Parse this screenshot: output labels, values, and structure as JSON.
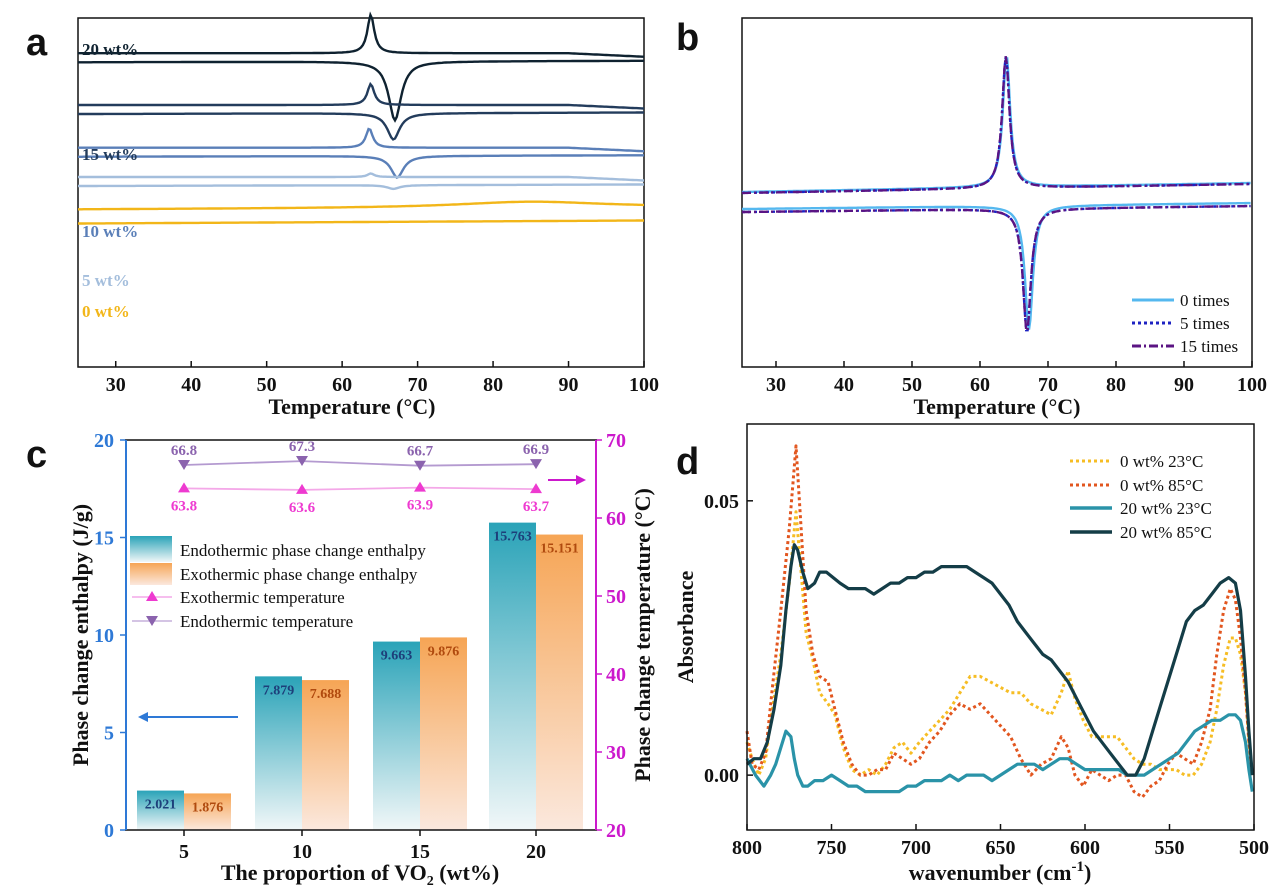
{
  "colors": {
    "wt20": "#0f2230",
    "wt15": "#233c5c",
    "wt10": "#5a7fb8",
    "wt5": "#a4bedc",
    "wt0": "#f2b619",
    "b0": "#55b8ef",
    "b5": "#1d22c2",
    "b15": "#5b1483",
    "endoBar": "#2aa3b8",
    "exoBar": "#f6a555",
    "exoT": "#ee3ad0",
    "endoT": "#8b63ae",
    "leftAxis": "#2e79d6",
    "rightAxis": "#cc19cc",
    "d0_23": "#f6bd24",
    "d0_85": "#e2561f",
    "d20_23": "#2a93a8",
    "d20_85": "#143d47",
    "endoLabel": "#1d3f7a",
    "exoLabel": "#b04a0e"
  },
  "chart_data": [
    {
      "panel": "a",
      "type": "line",
      "xlabel": "Temperature (°C)",
      "ylabel": "",
      "xlim": [
        25,
        100
      ],
      "xticks": [
        "30",
        "40",
        "50",
        "60",
        "70",
        "80",
        "90",
        "100"
      ],
      "series": [
        {
          "name": "20 wt%",
          "offset": 0.5,
          "exo_peak_x": 63.8,
          "endo_peak_x": 67.0,
          "exo_peak_h": 1.1,
          "endo_peak_h": 1.9
        },
        {
          "name": "15 wt%",
          "offset": 2.8,
          "exo_peak_x": 63.8,
          "endo_peak_x": 66.8,
          "exo_peak_h": 0.6,
          "endo_peak_h": 0.85
        },
        {
          "name": "10 wt%",
          "offset": 4.7,
          "exo_peak_x": 63.6,
          "endo_peak_x": 67.3,
          "exo_peak_h": 0.55,
          "endo_peak_h": 0.7
        },
        {
          "name": "5 wt%",
          "offset": 6.0,
          "exo_peak_x": 63.8,
          "endo_peak_x": 66.8,
          "exo_peak_h": 0.1,
          "endo_peak_h": 0.12
        },
        {
          "name": "0 wt%",
          "offset": 7.0,
          "exo_peak_x": null,
          "endo_peak_x": null,
          "exo_peak_h": 0,
          "endo_peak_h": 0
        }
      ]
    },
    {
      "panel": "b",
      "type": "line",
      "xlabel": "Temperature (°C)",
      "ylabel": "",
      "xlim": [
        25,
        100
      ],
      "xticks": [
        "30",
        "40",
        "50",
        "60",
        "70",
        "80",
        "90",
        "100"
      ],
      "legend": [
        "0 times",
        "5 times",
        "15 times"
      ],
      "legend_position": "bottom-right",
      "series": [
        {
          "name": "0 times",
          "exo_peak_x": 63.9,
          "endo_peak_x": 67.2
        },
        {
          "name": "5 times",
          "exo_peak_x": 63.8,
          "endo_peak_x": 66.9
        },
        {
          "name": "15 times",
          "exo_peak_x": 63.8,
          "endo_peak_x": 66.9
        }
      ]
    },
    {
      "panel": "c",
      "type": "bar",
      "categories": [
        "5",
        "10",
        "15",
        "20"
      ],
      "xlabel": "The proportion of VO2 (wt%)",
      "ylabel": "Phase change enthalpy (J/g)",
      "ylabel_right": "Phase change temperature (°C)",
      "ylim": [
        0,
        20
      ],
      "ylim_right": [
        20,
        70
      ],
      "yticks_left": [
        "0",
        "5",
        "10",
        "15",
        "20"
      ],
      "yticks_right": [
        "20",
        "30",
        "40",
        "50",
        "60",
        "70"
      ],
      "series": [
        {
          "name": "Endothermic phase change enthalpy",
          "type": "bar",
          "values": [
            2.021,
            7.879,
            9.663,
            15.763
          ],
          "labels": [
            "2.021",
            "7.879",
            "9.663",
            "15.763"
          ]
        },
        {
          "name": "Exothermic phase change enthalpy",
          "type": "bar",
          "values": [
            1.876,
            7.688,
            9.876,
            15.151
          ],
          "labels": [
            "1.876",
            "7.688",
            "9.876",
            "15.151"
          ]
        },
        {
          "name": "Exothermic temperature",
          "type": "line",
          "axis": "right",
          "values": [
            63.8,
            63.6,
            63.9,
            63.7
          ],
          "labels": [
            "63.8",
            "63.6",
            "63.9",
            "63.7"
          ]
        },
        {
          "name": "Endothermic temperature",
          "type": "line",
          "axis": "right",
          "values": [
            66.8,
            67.3,
            66.7,
            66.9
          ],
          "labels": [
            "66.8",
            "67.3",
            "66.7",
            "66.9"
          ]
        }
      ]
    },
    {
      "panel": "d",
      "type": "line",
      "xlabel": "wavenumber (cm-1)",
      "ylabel": "Absorbance",
      "xlim": [
        800,
        500
      ],
      "ylim": [
        -0.01,
        0.064
      ],
      "xticks": [
        "800",
        "750",
        "700",
        "650",
        "600",
        "550",
        "500"
      ],
      "yticks": [
        "0.00",
        "0.05"
      ],
      "legend_position": "top-right",
      "series": [
        {
          "name": "0 wt% 23°C",
          "x": [
            800,
            797,
            793,
            789,
            785,
            780,
            775,
            771,
            768,
            765,
            761,
            757,
            752,
            748,
            743,
            738,
            733,
            728,
            723,
            718,
            713,
            708,
            703,
            698,
            692,
            686,
            680,
            674,
            668,
            662,
            656,
            650,
            644,
            638,
            632,
            626,
            620,
            614,
            610,
            606,
            601,
            596,
            591,
            586,
            581,
            576,
            571,
            566,
            561,
            556,
            551,
            546,
            541,
            536,
            531,
            526,
            522,
            518,
            514,
            511,
            508,
            505,
            503,
            501
          ],
          "y": [
            0.006,
            0.003,
            0.0,
            0.003,
            0.012,
            0.022,
            0.035,
            0.048,
            0.037,
            0.026,
            0.021,
            0.015,
            0.013,
            0.011,
            0.005,
            0.001,
            0.0,
            0.001,
            0.0,
            0.002,
            0.005,
            0.006,
            0.004,
            0.006,
            0.008,
            0.01,
            0.012,
            0.015,
            0.018,
            0.018,
            0.017,
            0.016,
            0.015,
            0.015,
            0.013,
            0.012,
            0.011,
            0.015,
            0.019,
            0.014,
            0.01,
            0.007,
            0.007,
            0.007,
            0.007,
            0.005,
            0.003,
            0.002,
            0.002,
            0.001,
            0.001,
            0.001,
            0.0,
            0.0,
            0.002,
            0.006,
            0.012,
            0.02,
            0.025,
            0.025,
            0.022,
            0.015,
            0.006,
            0.0
          ]
        },
        {
          "name": "0 wt% 85°C",
          "x": [
            800,
            797,
            793,
            789,
            785,
            780,
            775,
            771,
            768,
            765,
            761,
            757,
            752,
            748,
            743,
            738,
            733,
            728,
            723,
            718,
            713,
            708,
            703,
            698,
            692,
            686,
            680,
            674,
            668,
            662,
            656,
            650,
            644,
            638,
            632,
            626,
            620,
            614,
            610,
            606,
            601,
            596,
            591,
            586,
            581,
            576,
            571,
            566,
            561,
            556,
            551,
            546,
            541,
            536,
            531,
            526,
            522,
            518,
            514,
            511,
            508,
            505,
            503,
            501
          ],
          "y": [
            0.008,
            0.002,
            0.001,
            0.004,
            0.016,
            0.03,
            0.045,
            0.06,
            0.045,
            0.03,
            0.022,
            0.018,
            0.017,
            0.012,
            0.006,
            0.002,
            0.0,
            0.0,
            0.001,
            0.001,
            0.004,
            0.003,
            0.002,
            0.003,
            0.006,
            0.008,
            0.011,
            0.013,
            0.012,
            0.013,
            0.011,
            0.009,
            0.007,
            0.003,
            0.0,
            0.002,
            0.003,
            0.007,
            0.005,
            0.0,
            -0.002,
            0.001,
            0.0,
            -0.001,
            0.0,
            0.0,
            -0.003,
            -0.004,
            -0.002,
            -0.001,
            0.002,
            0.004,
            0.003,
            0.002,
            0.006,
            0.012,
            0.022,
            0.03,
            0.034,
            0.032,
            0.025,
            0.015,
            0.006,
            0.0
          ]
        },
        {
          "name": "20 wt% 23°C",
          "x": [
            800,
            795,
            790,
            786,
            783,
            780,
            777,
            774,
            772,
            770,
            767,
            764,
            760,
            755,
            750,
            745,
            740,
            735,
            730,
            725,
            720,
            715,
            710,
            705,
            700,
            695,
            690,
            685,
            680,
            675,
            670,
            665,
            660,
            655,
            650,
            645,
            640,
            635,
            630,
            625,
            620,
            615,
            610,
            605,
            600,
            595,
            590,
            585,
            580,
            575,
            570,
            565,
            560,
            555,
            550,
            545,
            540,
            535,
            530,
            525,
            520,
            515,
            511,
            508,
            505,
            503,
            501
          ],
          "y": [
            0.003,
            0.0,
            -0.002,
            0.0,
            0.002,
            0.005,
            0.008,
            0.007,
            0.003,
            0.0,
            -0.002,
            -0.002,
            -0.001,
            -0.001,
            0.0,
            -0.001,
            -0.002,
            -0.002,
            -0.003,
            -0.003,
            -0.003,
            -0.003,
            -0.003,
            -0.002,
            -0.002,
            -0.001,
            -0.001,
            -0.001,
            0.0,
            -0.001,
            0.0,
            0.0,
            0.0,
            -0.001,
            0.0,
            0.001,
            0.002,
            0.002,
            0.002,
            0.001,
            0.002,
            0.003,
            0.003,
            0.002,
            0.001,
            0.001,
            0.001,
            0.001,
            0.001,
            0.0,
            0.0,
            0.0,
            0.001,
            0.002,
            0.003,
            0.004,
            0.006,
            0.008,
            0.009,
            0.01,
            0.01,
            0.011,
            0.011,
            0.01,
            0.006,
            0.001,
            -0.003
          ]
        },
        {
          "name": "20 wt% 85°C",
          "x": [
            800,
            796,
            792,
            788,
            784,
            780,
            777,
            774,
            772,
            770,
            767,
            764,
            760,
            757,
            753,
            749,
            745,
            740,
            735,
            730,
            725,
            720,
            715,
            710,
            705,
            700,
            695,
            690,
            685,
            680,
            675,
            670,
            665,
            660,
            655,
            650,
            645,
            640,
            635,
            630,
            625,
            620,
            615,
            610,
            605,
            600,
            595,
            590,
            585,
            580,
            575,
            570,
            565,
            560,
            555,
            550,
            545,
            540,
            535,
            530,
            525,
            520,
            515,
            511,
            508,
            505,
            503,
            501
          ],
          "y": [
            0.002,
            0.003,
            0.003,
            0.006,
            0.012,
            0.02,
            0.03,
            0.038,
            0.042,
            0.041,
            0.037,
            0.034,
            0.035,
            0.037,
            0.037,
            0.036,
            0.035,
            0.034,
            0.034,
            0.034,
            0.033,
            0.034,
            0.035,
            0.035,
            0.036,
            0.036,
            0.037,
            0.037,
            0.038,
            0.038,
            0.038,
            0.038,
            0.037,
            0.036,
            0.035,
            0.033,
            0.031,
            0.028,
            0.026,
            0.024,
            0.022,
            0.021,
            0.019,
            0.017,
            0.014,
            0.011,
            0.008,
            0.006,
            0.004,
            0.002,
            0.0,
            0.0,
            0.003,
            0.008,
            0.013,
            0.018,
            0.023,
            0.028,
            0.03,
            0.031,
            0.033,
            0.035,
            0.036,
            0.035,
            0.03,
            0.018,
            0.008,
            0.0
          ]
        }
      ]
    }
  ]
}
